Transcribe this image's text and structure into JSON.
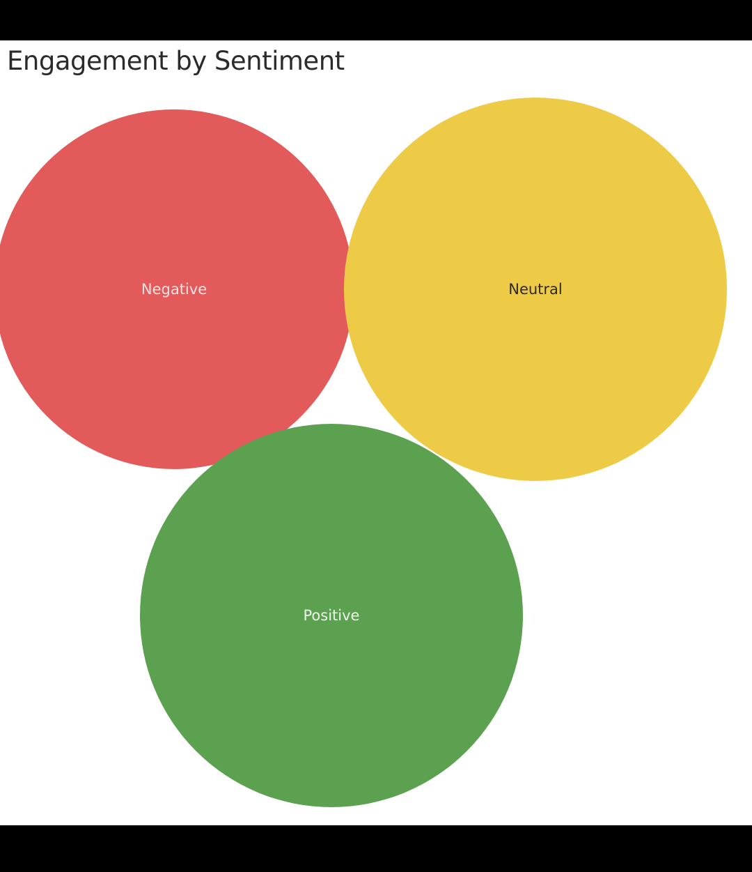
{
  "chart_data": {
    "type": "bubble",
    "title": "Engagement by Sentiment",
    "bubbles": [
      {
        "label": "Negative",
        "relative_size": 0.88,
        "color": "#e35a5a",
        "label_color": "#f3e3e3"
      },
      {
        "label": "Neutral",
        "relative_size": 1.0,
        "color": "#eecb47",
        "label_color": "#2b2b2b"
      },
      {
        "label": "Positive",
        "relative_size": 1.0,
        "color": "#5ba150",
        "label_color": "#eef5ec"
      }
    ]
  }
}
